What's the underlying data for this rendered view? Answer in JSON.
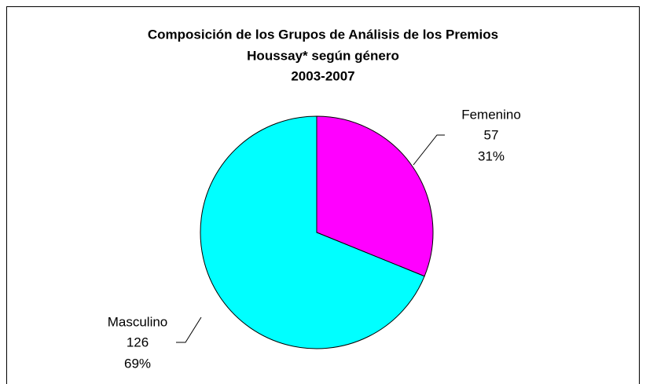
{
  "chart_data": {
    "type": "pie",
    "title": [
      "Composición de los Grupos de Análisis de los Premios",
      "Houssay* según género",
      "2003-2007"
    ],
    "categories": [
      "Femenino",
      "Masculino"
    ],
    "values": [
      57,
      126
    ],
    "percent_labels": [
      "31%",
      "69%"
    ],
    "colors": [
      "#ff00ff",
      "#00ffff"
    ]
  }
}
